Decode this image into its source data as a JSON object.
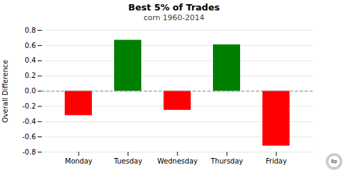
{
  "chart_data": {
    "type": "bar",
    "title": "Best 5% of Trades",
    "subtitle": "corn 1960-2014",
    "ylabel": "Overall Difference",
    "categories": [
      "Monday",
      "Tuesday",
      "Wednesday",
      "Thursday",
      "Friday"
    ],
    "values": [
      -0.32,
      0.67,
      -0.25,
      0.61,
      -0.72
    ],
    "colors": [
      "red",
      "green",
      "red",
      "green",
      "red"
    ],
    "ylim": [
      -0.8,
      0.8
    ],
    "yticks": [
      -0.8,
      -0.6,
      -0.4,
      -0.2,
      {
        "value": 0,
        "label": "0.0"
      },
      0.2,
      0.4,
      0.6,
      0.8
    ],
    "grid": true,
    "annotations": [
      {
        "text": "Bp"
      }
    ]
  }
}
